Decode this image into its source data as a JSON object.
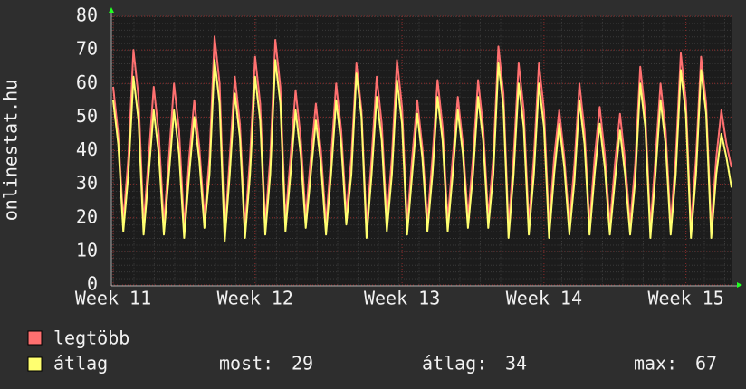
{
  "chart_data": {
    "type": "line",
    "y_label": "onlinestat.hu",
    "categories": [
      "Week 11",
      null,
      null,
      null,
      null,
      null,
      null,
      null,
      null,
      null,
      null,
      null,
      null,
      null,
      null,
      null,
      null,
      null,
      null,
      null,
      null,
      null,
      null,
      null,
      null,
      null,
      null,
      null,
      "Week 12",
      null,
      null,
      null,
      null,
      null,
      null,
      null,
      null,
      null,
      null,
      null,
      null,
      null,
      null,
      null,
      null,
      null,
      null,
      null,
      null,
      null,
      null,
      null,
      null,
      null,
      null,
      null,
      null,
      "Week 13",
      null,
      null,
      null,
      null,
      null,
      null,
      null,
      null,
      null,
      null,
      null,
      null,
      null,
      null,
      null,
      null,
      null,
      null,
      null,
      null,
      null,
      null,
      null,
      null,
      null,
      null,
      null,
      "Week 14",
      null,
      null,
      null,
      null,
      null,
      null,
      null,
      null,
      null,
      null,
      null,
      null,
      null,
      null,
      null,
      null,
      null,
      null,
      null,
      null,
      null,
      null,
      null,
      null,
      null,
      null,
      null,
      "Week 15",
      null,
      null,
      null,
      null,
      null,
      null,
      null,
      null,
      null
    ],
    "series": [
      {
        "name": "legtöbb",
        "color": "#ff7070",
        "values": [
          59,
          45,
          19,
          38,
          70,
          56,
          18,
          38,
          59,
          45,
          18,
          38,
          60,
          46,
          17,
          38,
          55,
          41,
          20,
          38,
          74,
          60,
          15,
          38,
          62,
          48,
          17,
          38,
          68,
          54,
          18,
          38,
          73,
          59,
          19,
          38,
          58,
          44,
          20,
          38,
          54,
          40,
          18,
          38,
          60,
          46,
          21,
          38,
          66,
          52,
          17,
          38,
          62,
          48,
          19,
          38,
          67,
          53,
          18,
          38,
          55,
          41,
          19,
          38,
          61,
          47,
          19,
          38,
          56,
          42,
          20,
          38,
          61,
          47,
          20,
          38,
          71,
          57,
          17,
          38,
          66,
          52,
          18,
          38,
          66,
          52,
          17,
          38,
          52,
          38,
          18,
          36,
          60,
          46,
          18,
          38,
          53,
          39,
          18,
          36,
          51,
          37,
          18,
          36,
          65,
          51,
          17,
          38,
          60,
          46,
          18,
          38,
          69,
          55,
          17,
          38,
          68,
          54,
          17,
          38,
          52,
          42,
          35
        ]
      },
      {
        "name": "átlag",
        "color": "#ffff70",
        "values": [
          55,
          42,
          16,
          33,
          62,
          49,
          15,
          33,
          52,
          39,
          15,
          33,
          52,
          39,
          14,
          33,
          50,
          37,
          17,
          33,
          67,
          54,
          13,
          33,
          57,
          44,
          14,
          33,
          62,
          49,
          15,
          33,
          67,
          54,
          16,
          33,
          52,
          39,
          17,
          33,
          49,
          36,
          15,
          33,
          55,
          42,
          18,
          33,
          63,
          50,
          14,
          33,
          56,
          43,
          16,
          33,
          61,
          48,
          15,
          33,
          51,
          38,
          16,
          33,
          56,
          43,
          16,
          33,
          52,
          39,
          17,
          33,
          56,
          43,
          17,
          33,
          66,
          53,
          14,
          33,
          60,
          47,
          15,
          33,
          60,
          47,
          14,
          33,
          48,
          35,
          15,
          31,
          55,
          42,
          15,
          33,
          48,
          35,
          15,
          31,
          46,
          33,
          15,
          31,
          60,
          47,
          14,
          33,
          55,
          42,
          15,
          33,
          64,
          51,
          14,
          33,
          64,
          51,
          14,
          33,
          45,
          38,
          29
        ]
      }
    ],
    "ylim": [
      0,
      80
    ],
    "yticks": [
      0,
      10,
      20,
      30,
      40,
      50,
      60,
      70,
      80
    ],
    "grid": true,
    "stats": [
      {
        "label": "most:",
        "value": 29
      },
      {
        "label": "átlag:",
        "value": 34
      },
      {
        "label": "max:",
        "value": 67
      }
    ]
  }
}
